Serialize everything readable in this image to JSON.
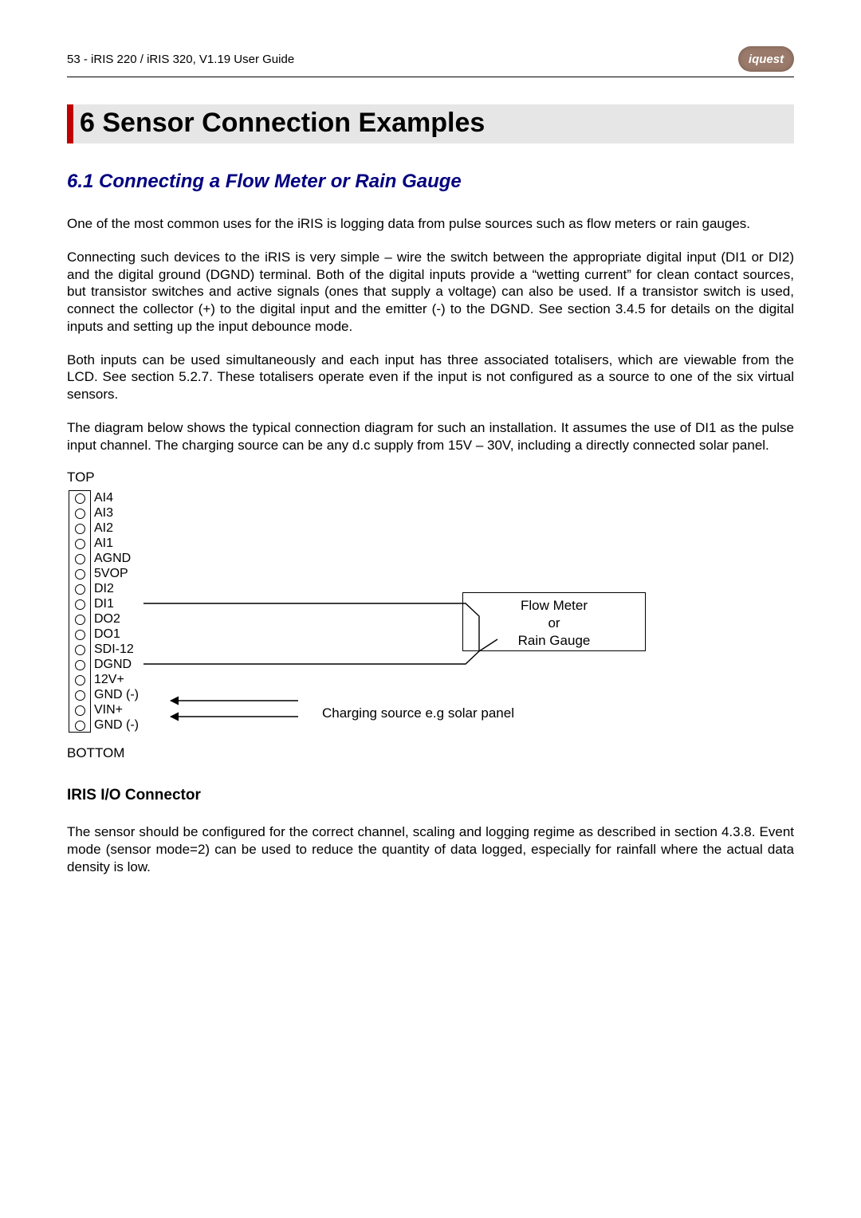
{
  "header": {
    "page_no": "53",
    "doc_title": "iRIS 220 / iRIS 320, V1.19 User Guide",
    "logo_text": "iquest",
    "logo_bg": "#9a7a6a"
  },
  "heading1": {
    "num": "6",
    "text": "Sensor Connection Examples"
  },
  "heading2": {
    "num": "6.1",
    "text": "Connecting a Flow Meter or Rain Gauge"
  },
  "paragraphs": {
    "p1": "One of the most common uses for the iRIS is logging data from pulse sources such as flow meters or rain gauges.",
    "p2": "Connecting such devices to the iRIS is very simple – wire the switch between the appropriate digital input (DI1 or DI2) and the digital ground (DGND) terminal. Both of the digital inputs provide a “wetting current” for clean contact sources, but transistor switches and active signals (ones that supply a voltage) can also be used.  If a transistor switch is used, connect the collector (+) to the digital input and the emitter (-) to the DGND. See section 3.4.5 for details on the digital inputs and setting up the input debounce mode.",
    "p3": "Both inputs can be used simultaneously and each input has three associated totalisers, which are viewable from the LCD.  See section 5.2.7. These totalisers operate even if the input is not configured as a source to one of the six virtual sensors.",
    "p4": "The diagram below shows the typical connection diagram for such an installation.  It assumes the use of DI1 as the pulse input channel. The charging source can be any d.c supply from 15V – 30V, including a directly connected solar panel.",
    "p5": "The sensor should be configured for the correct channel, scaling and logging regime as described in section 4.3.8. Event mode (sensor mode=2) can be used to reduce the quantity of data logged, especially for rainfall where the actual data density is low."
  },
  "diagram": {
    "top_label": "TOP",
    "bottom_label": "BOTTOM",
    "terminals": [
      "AI4",
      "AI3",
      "AI2",
      "AI1",
      "AGND",
      "5VOP",
      "DI2",
      "DI1",
      "DO2",
      "DO1",
      "SDI-12",
      "DGND",
      "12V+",
      "GND (-)",
      "VIN+",
      "GND (-)"
    ],
    "box": {
      "l1": "Flow Meter",
      "l2": "or",
      "l3": "Rain Gauge"
    },
    "charging_label": "Charging source e.g solar panel",
    "colors": {
      "stroke": "#000000"
    }
  },
  "heading3": "IRIS I/O Connector"
}
